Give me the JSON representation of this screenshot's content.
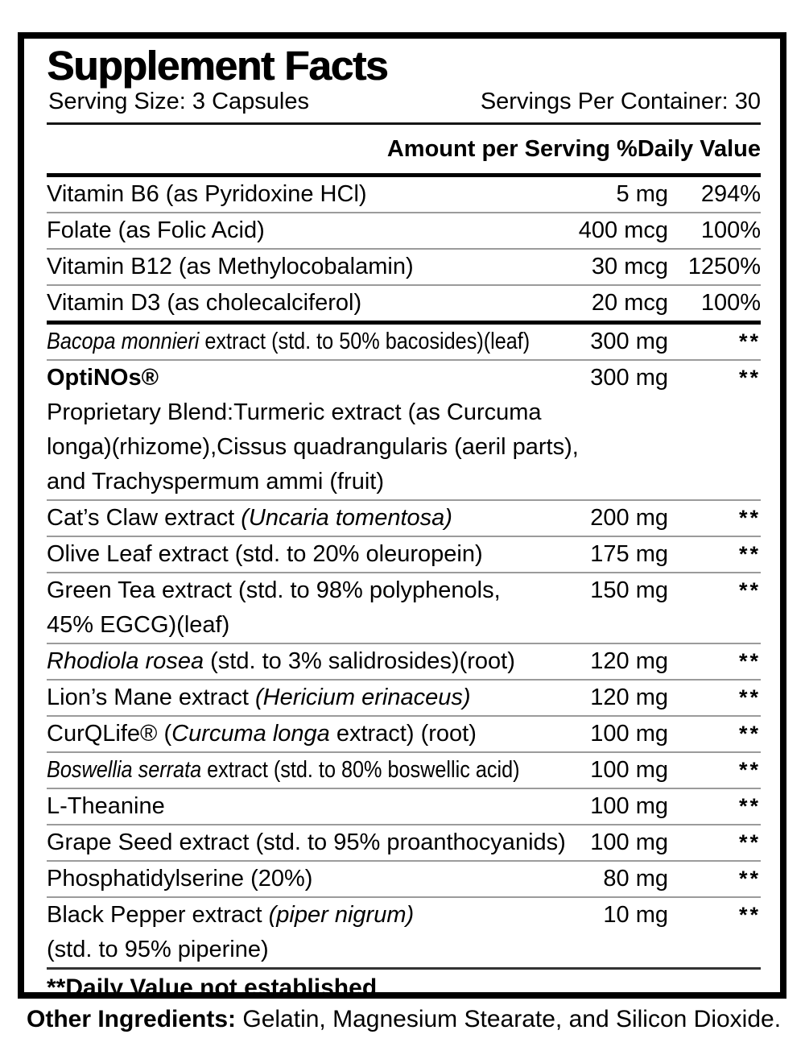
{
  "panel": {
    "title": "Supplement Facts",
    "serving_size": "Serving Size: 3 Capsules",
    "servings_per_container": "Servings Per Container: 30",
    "column_header": "Amount per Serving %Daily Value",
    "footnote": "**Daily Value not established",
    "vitamins": [
      {
        "name_parts": [
          {
            "text": "Vitamin B6 (as Pyridoxine HCl)"
          }
        ],
        "amount": "5 mg",
        "daily_value": "294%"
      },
      {
        "name_parts": [
          {
            "text": "Folate (as Folic Acid)"
          }
        ],
        "amount": "400 mcg",
        "daily_value": "100%"
      },
      {
        "name_parts": [
          {
            "text": "Vitamin B12 (as Methylocobalamin)"
          }
        ],
        "amount": "30 mcg",
        "daily_value": "1250%"
      },
      {
        "name_parts": [
          {
            "text": "Vitamin D3 (as cholecalciferol)"
          }
        ],
        "amount": "20 mcg",
        "daily_value": "100%"
      }
    ],
    "ingredients": [
      {
        "name_parts": [
          {
            "text": "Bacopa monnieri",
            "style": "italic"
          },
          {
            "text": " extract (std. to 50% bacosides)(leaf)"
          }
        ],
        "amount": "300 mg",
        "daily_value": "**",
        "condensed": true
      },
      {
        "name_parts": [
          {
            "text": "OptiNOs®",
            "style": "bold"
          }
        ],
        "amount": "300 mg",
        "daily_value": "**",
        "sub_lines": [
          "Proprietary Blend:Turmeric extract (as Curcuma",
          "longa)(rhizome),Cissus quadrangularis (aeril parts),",
          "and Trachyspermum ammi (fruit)"
        ]
      },
      {
        "name_parts": [
          {
            "text": "Cat’s Claw extract "
          },
          {
            "text": "(Uncaria tomentosa)",
            "style": "italic"
          }
        ],
        "amount": "200 mg",
        "daily_value": "**"
      },
      {
        "name_parts": [
          {
            "text": "Olive Leaf extract (std. to 20% oleuropein)"
          }
        ],
        "amount": "175 mg",
        "daily_value": "**"
      },
      {
        "name_parts": [
          {
            "text": "Green Tea extract (std. to 98% polyphenols,"
          }
        ],
        "amount": "150 mg",
        "daily_value": "**",
        "sub_lines": [
          "45% EGCG)(leaf)"
        ]
      },
      {
        "name_parts": [
          {
            "text": "Rhodiola rosea",
            "style": "italic"
          },
          {
            "text": " (std. to 3% salidrosides)(root)"
          }
        ],
        "amount": "120 mg",
        "daily_value": "**"
      },
      {
        "name_parts": [
          {
            "text": "Lion’s Mane extract "
          },
          {
            "text": "(Hericium erinaceus)",
            "style": "italic"
          }
        ],
        "amount": "120 mg",
        "daily_value": "**"
      },
      {
        "name_parts": [
          {
            "text": "CurQLife® ("
          },
          {
            "text": "Curcuma longa",
            "style": "italic"
          },
          {
            "text": " extract) (root)"
          }
        ],
        "amount": "100 mg",
        "daily_value": "**"
      },
      {
        "name_parts": [
          {
            "text": "Boswellia serrata",
            "style": "italic"
          },
          {
            "text": " extract (std. to 80% boswellic acid)"
          }
        ],
        "amount": "100 mg",
        "daily_value": "**",
        "condensed": true
      },
      {
        "name_parts": [
          {
            "text": "L-Theanine"
          }
        ],
        "amount": "100 mg",
        "daily_value": "**"
      },
      {
        "name_parts": [
          {
            "text": "Grape Seed extract (std. to 95% proanthocyanids)"
          }
        ],
        "amount": "100 mg",
        "daily_value": "**"
      },
      {
        "name_parts": [
          {
            "text": "Phosphatidylserine (20%)"
          }
        ],
        "amount": "80 mg",
        "daily_value": "**"
      },
      {
        "name_parts": [
          {
            "text": "Black Pepper extract "
          },
          {
            "text": "(piper nigrum)",
            "style": "italic"
          }
        ],
        "amount": "10 mg",
        "daily_value": "**",
        "sub_lines": [
          "(std. to 95% piperine)"
        ]
      }
    ]
  },
  "other_ingredients": {
    "label": "Other Ingredients:",
    "text": " Gelatin, Magnesium Stearate, and Silicon Dioxide."
  },
  "colors": {
    "text": "#000000",
    "thin_rule": "#9b9b9b",
    "thick_rule": "#000000",
    "background": "#ffffff"
  }
}
